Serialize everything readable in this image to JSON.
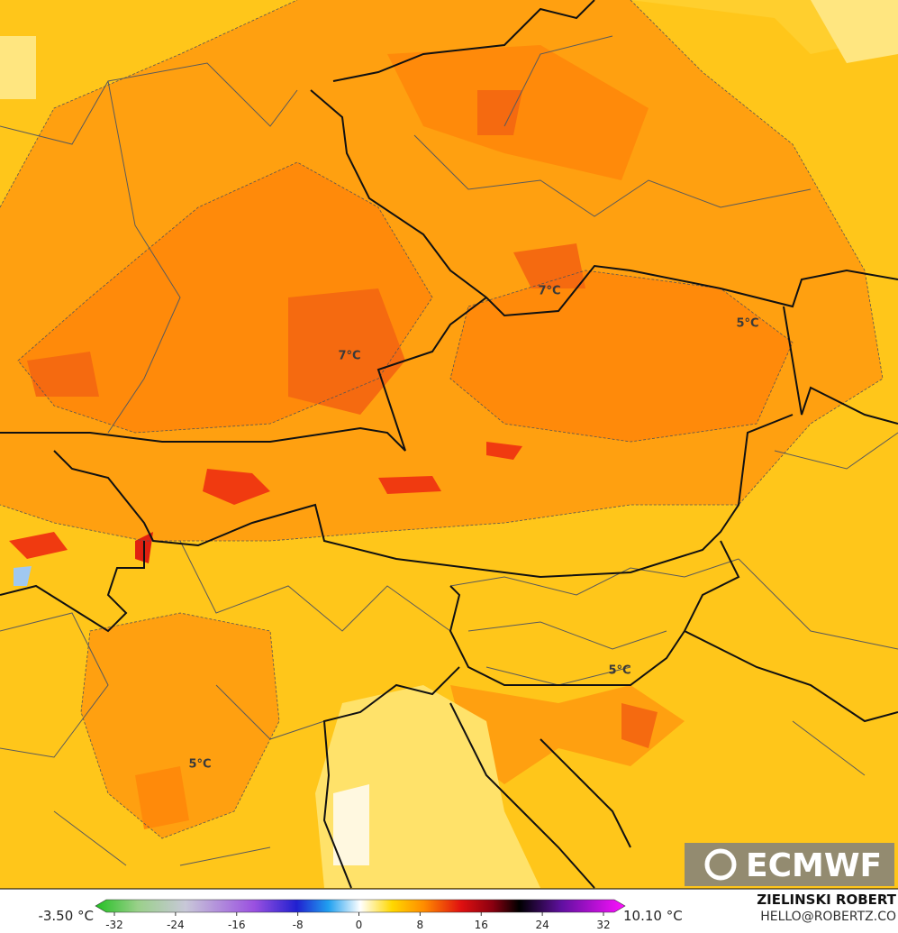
{
  "map": {
    "contour_labels": [
      "7°C",
      "7°C",
      "5°C",
      "5°C",
      "5°C"
    ],
    "logo": "ECMWF",
    "author": "ZIELINSKI ROBERT",
    "contact": "HELLO@ROBERTZ.CO"
  },
  "colorbar": {
    "min_label": "-3.50 °C",
    "max_label": "10.10 °C",
    "ticks": [
      -32,
      -24,
      -16,
      -8,
      0,
      8,
      16,
      24,
      32
    ]
  }
}
